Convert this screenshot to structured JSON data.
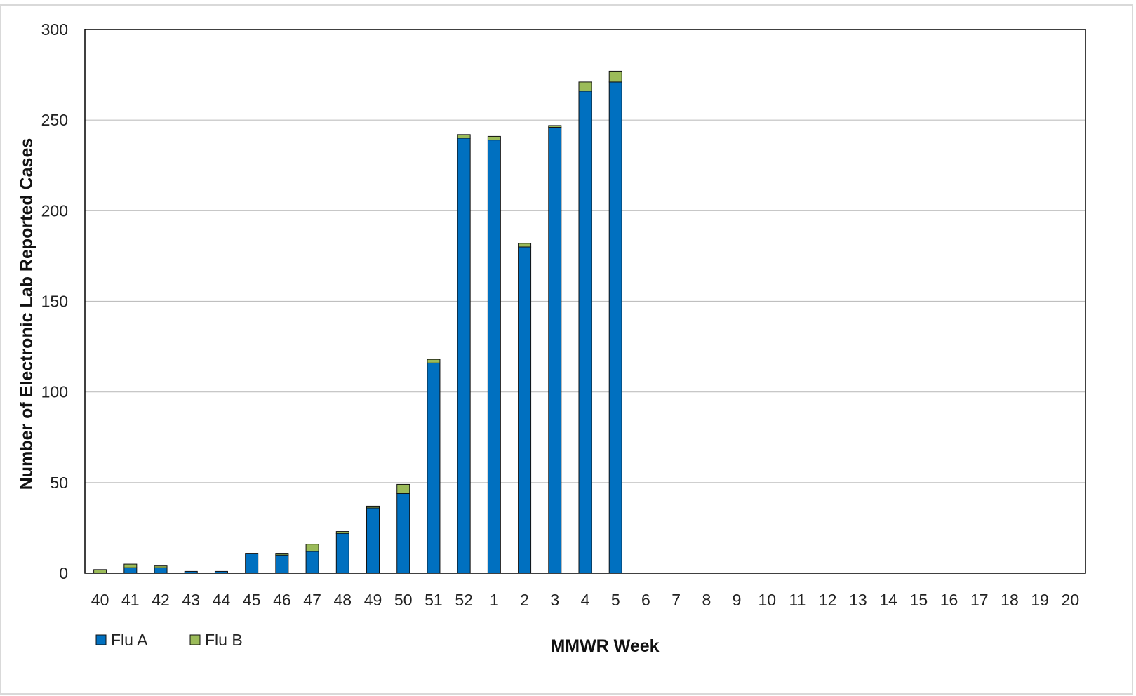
{
  "chart_data": {
    "type": "bar",
    "stacked": true,
    "title": "",
    "xlabel": "MMWR Week",
    "ylabel": "Number of Electronic Lab Reported Cases",
    "ylim": [
      0,
      300
    ],
    "yticks": [
      0,
      50,
      100,
      150,
      200,
      250,
      300
    ],
    "grid": true,
    "legend_position": "bottom-left",
    "categories": [
      "40",
      "41",
      "42",
      "43",
      "44",
      "45",
      "46",
      "47",
      "48",
      "49",
      "50",
      "51",
      "52",
      "1",
      "2",
      "3",
      "4",
      "5",
      "6",
      "7",
      "8",
      "9",
      "10",
      "11",
      "12",
      "13",
      "14",
      "15",
      "16",
      "17",
      "18",
      "19",
      "20"
    ],
    "series": [
      {
        "name": "Flu A",
        "color": "#0070c0",
        "values": [
          0,
          3,
          3,
          1,
          1,
          11,
          10,
          12,
          22,
          36,
          44,
          116,
          240,
          239,
          180,
          246,
          266,
          271,
          null,
          null,
          null,
          null,
          null,
          null,
          null,
          null,
          null,
          null,
          null,
          null,
          null,
          null,
          null
        ]
      },
      {
        "name": "Flu B",
        "color": "#9bbb59",
        "values": [
          2,
          2,
          1,
          0,
          0,
          0,
          1,
          4,
          1,
          1,
          5,
          2,
          2,
          2,
          2,
          1,
          5,
          6,
          null,
          null,
          null,
          null,
          null,
          null,
          null,
          null,
          null,
          null,
          null,
          null,
          null,
          null,
          null
        ]
      }
    ]
  }
}
